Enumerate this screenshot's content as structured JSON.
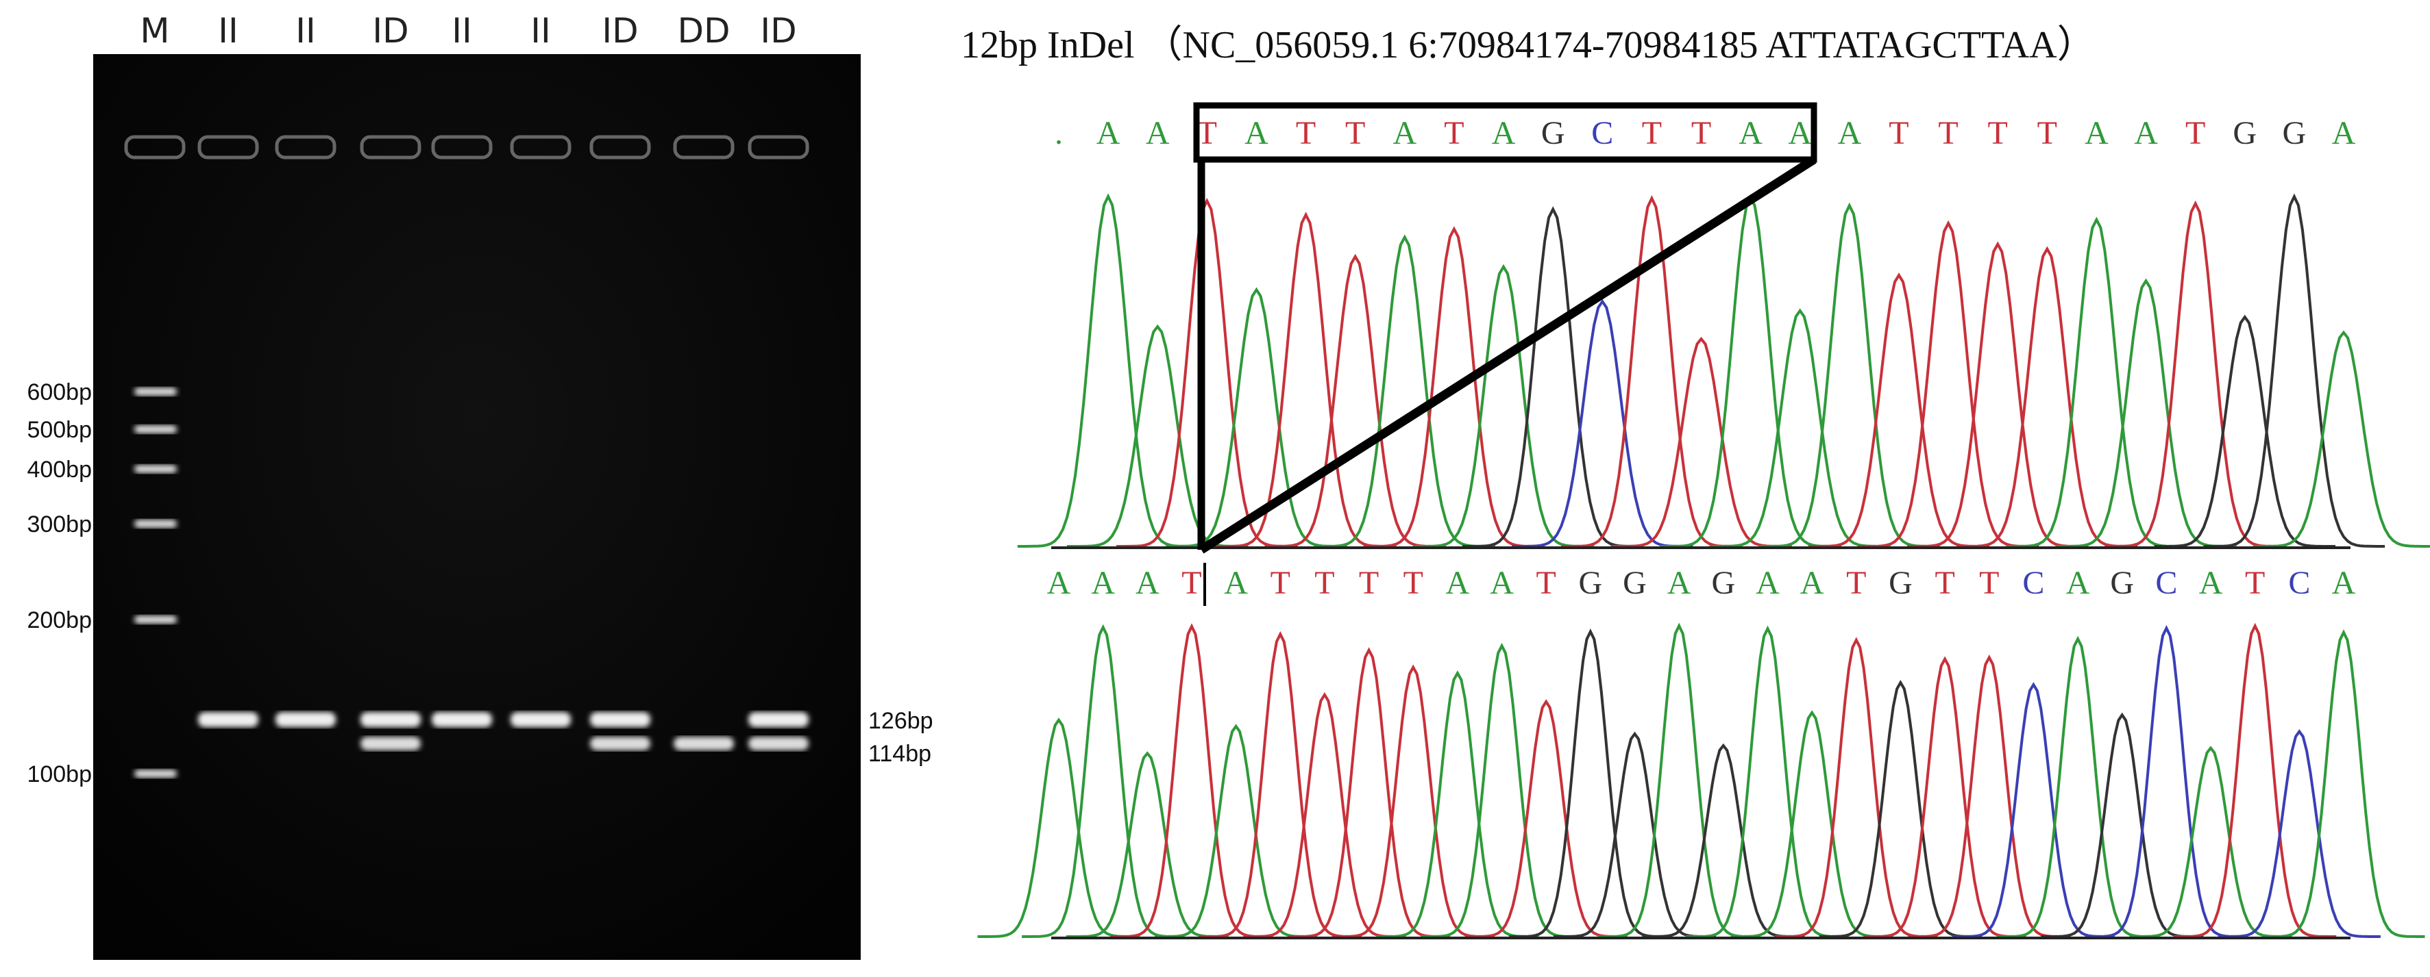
{
  "gel": {
    "lanes": [
      "M",
      "II",
      "II",
      "ID",
      "II",
      "II",
      "ID",
      "DD",
      "ID"
    ],
    "marker_labels": [
      "600bp",
      "500bp",
      "400bp",
      "300bp",
      "200bp",
      "100bp"
    ],
    "band_labels": [
      "126bp",
      "114bp"
    ]
  },
  "sequencing": {
    "title": "12bp InDel （NC_056059.1 6:70984174-70984185 ATTATAGCTTAA）",
    "base_colors": {
      "A": "#2f9a3a",
      "T": "#c8313a",
      "G": "#333333",
      "C": "#3a3fb5",
      ".": "#2f9a3a"
    },
    "top": [
      ".",
      "A",
      "A",
      "T",
      "A",
      "T",
      "T",
      "A",
      "T",
      "A",
      "G",
      "C",
      "T",
      "T",
      "A",
      "A",
      "A",
      "T",
      "T",
      "T",
      "T",
      "A",
      "A",
      "T",
      "G",
      "G",
      "A"
    ],
    "bottom": [
      "A",
      "A",
      "A",
      "T",
      "A",
      "T",
      "T",
      "T",
      "T",
      "A",
      "A",
      "T",
      "G",
      "G",
      "A",
      "G",
      "A",
      "A",
      "T",
      "G",
      "T",
      "T",
      "C",
      "A",
      "G",
      "C",
      "A",
      "T",
      "C",
      "A"
    ]
  }
}
